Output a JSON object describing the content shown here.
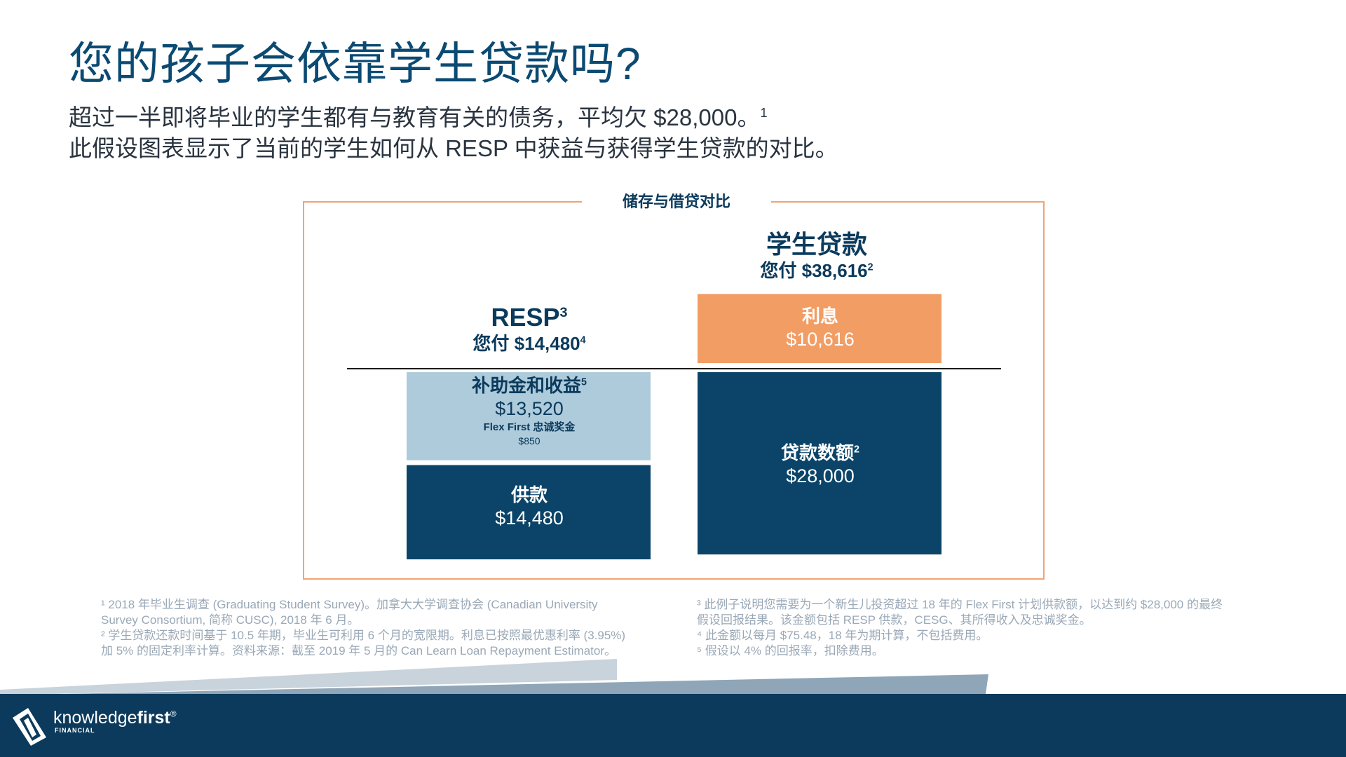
{
  "header": {
    "title": "您的孩子会依靠学生贷款吗?",
    "subtitle_line1": "超过一半即将毕业的学生都有与教育有关的债务，平均欠 $28,000。",
    "subtitle_line1_sup": "1",
    "subtitle_line2": "此假设图表显示了当前的学生如何从 RESP 中获益与获得学生贷款的对比。"
  },
  "chart_data": {
    "type": "bar",
    "title": "储存与借贷对比",
    "columns": [
      {
        "name": "RESP",
        "name_sup": "3",
        "pays_label": "您付 $14,480",
        "pays_sup": "4",
        "total": 14480,
        "segments": [
          {
            "label": "供款",
            "value": 14480,
            "value_text": "$14,480",
            "position": "below"
          },
          {
            "label": "补助金和收益",
            "label_sup": "5",
            "value": 13520,
            "value_text": "$13,520",
            "extra_label": "Flex First 忠诚奖金",
            "extra_value_text": "$850",
            "position": "below"
          }
        ]
      },
      {
        "name": "学生贷款",
        "pays_label": "您付 $38,616",
        "pays_sup": "2",
        "total": 38616,
        "segments": [
          {
            "label": "贷款数额",
            "label_sup": "2",
            "value": 28000,
            "value_text": "$28,000",
            "position": "below"
          },
          {
            "label": "利息",
            "value": 10616,
            "value_text": "$10,616",
            "position": "above"
          }
        ]
      }
    ],
    "colors": {
      "contribution": "#0b4468",
      "grants": "#aecbdb",
      "loan": "#0b4468",
      "interest": "#f29d64",
      "frame": "#f2a374"
    }
  },
  "footnotes": {
    "left": [
      "¹ 2018 年毕业生调查 (Graduating Student Survey)。加拿大大学调查协会 (Canadian University",
      "Survey Consortium, 简称 CUSC), 2018 年 6 月。",
      "² 学生贷款还款时间基于 10.5 年期，毕业生可利用 6 个月的宽限期。利息已按照最优惠利率 (3.95%)",
      "加 5% 的固定利率计算。资料来源：截至 2019 年 5 月的 Can Learn Loan Repayment Estimator。"
    ],
    "right": [
      "³ 此例子说明您需要为一个新生儿投资超过 18 年的 Flex First 计划供款额，以达到约 $28,000 的最终",
      "假设回报结果。该金额包括 RESP 供款，CESG、其所得收入及忠诚奖金。",
      "⁴ 此金额以每月 $75.48，18 年为期计算，不包括费用。",
      "⁵ 假设以 4% 的回报率，扣除费用。"
    ]
  },
  "footer": {
    "logo_text_light": "knowledge",
    "logo_text_bold": "first",
    "logo_reg": "®",
    "logo_sub": "FINANCIAL"
  }
}
